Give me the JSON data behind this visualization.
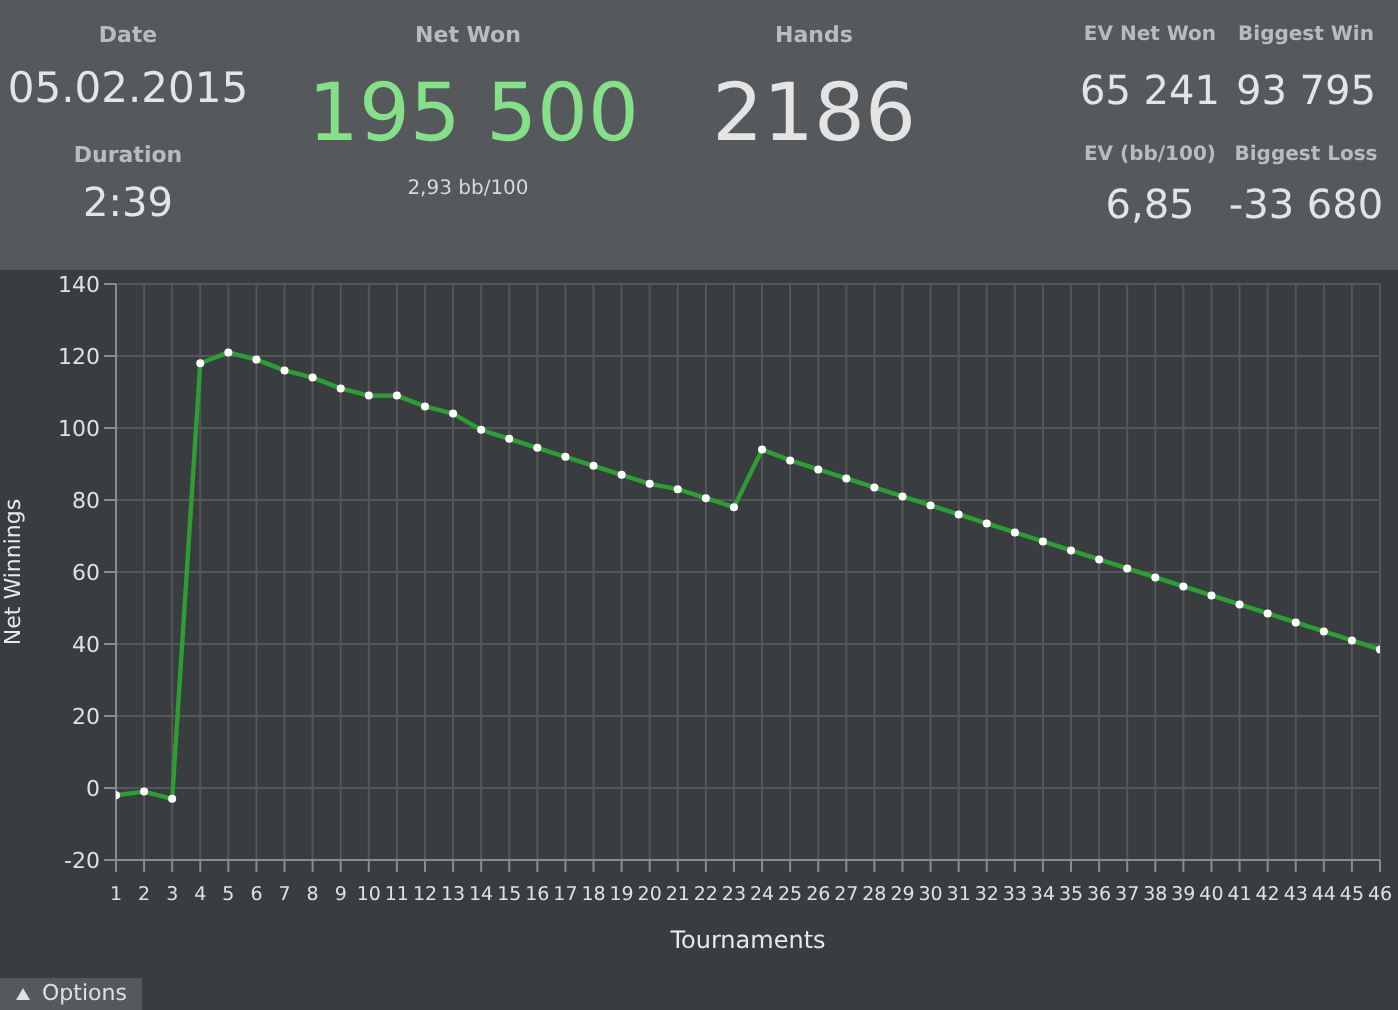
{
  "chart_data": {
    "type": "line",
    "xlabel": "Tournaments",
    "ylabel": "Net Winnings",
    "x": [
      1,
      2,
      3,
      4,
      5,
      6,
      7,
      8,
      9,
      10,
      11,
      12,
      13,
      14,
      15,
      16,
      17,
      18,
      19,
      20,
      21,
      22,
      23,
      24,
      25,
      26,
      27,
      28,
      29,
      30,
      31,
      32,
      33,
      34,
      35,
      36,
      37,
      38,
      39,
      40,
      41,
      42,
      43,
      44,
      45,
      46
    ],
    "series": [
      {
        "color": "#2e9e34",
        "values": [
          -2,
          -1,
          -3,
          118,
          121,
          119,
          116,
          114,
          111,
          109,
          109,
          106,
          104,
          99.5,
          97,
          94.5,
          92,
          89.5,
          87,
          84.5,
          83,
          80.5,
          78,
          94,
          91,
          88.5,
          86,
          83.5,
          81,
          78.5,
          76,
          73.5,
          71,
          68.5,
          66,
          63.5,
          61,
          58.5,
          56,
          53.5,
          51,
          48.5,
          46,
          43.5,
          41,
          38.5
        ]
      }
    ],
    "xlim": [
      1,
      46
    ],
    "xticks": [
      1,
      2,
      3,
      4,
      5,
      6,
      7,
      8,
      9,
      10,
      11,
      12,
      13,
      14,
      15,
      16,
      17,
      18,
      19,
      20,
      21,
      22,
      23,
      24,
      25,
      26,
      27,
      28,
      29,
      30,
      31,
      32,
      33,
      34,
      35,
      36,
      37,
      38,
      39,
      40,
      41,
      42,
      43,
      44,
      45,
      46
    ],
    "ylim": [
      -20,
      140
    ],
    "yticks": [
      -20,
      0,
      20,
      40,
      60,
      80,
      100,
      120,
      140
    ],
    "grid": true,
    "marker": "circle",
    "line_style": "solid",
    "annotations": [
      "Date",
      "05.02.2015",
      "Duration",
      "2:39",
      "Net Won",
      "195 500",
      "2,93 bb/100",
      "Hands",
      "2186",
      "EV Net Won",
      "65 241",
      "Biggest Win",
      "93 795",
      "EV (bb/100)",
      "6,85",
      "Biggest Loss",
      "-33 680",
      "Options"
    ]
  }
}
